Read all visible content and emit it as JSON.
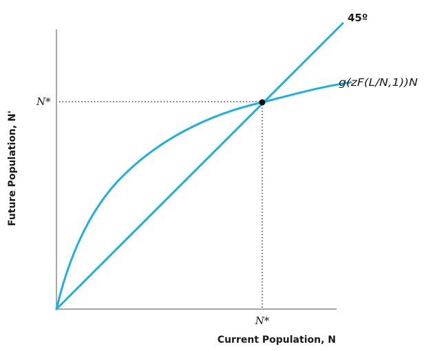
{
  "diagram": {
    "line_label": "45º",
    "curve_label": "g(zF(L/N,1))N",
    "x_axis_label": "Current Population, N",
    "y_axis_label": "Future Population, N'",
    "steady_state_x_label": "N*",
    "steady_state_y_label": "N*"
  },
  "colors": {
    "curve": "#1ab0e6",
    "steady_state_point": "#111111"
  }
}
